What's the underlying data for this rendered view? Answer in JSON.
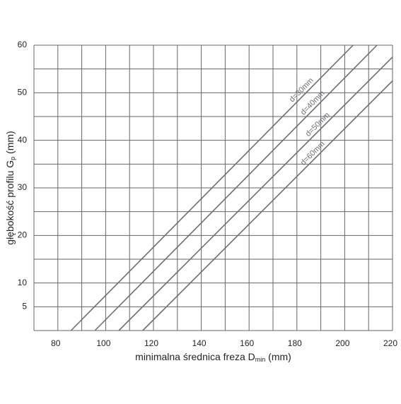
{
  "chart_data": {
    "type": "line",
    "x_label": {
      "text": "minimalna średnica freza D",
      "sub": "min",
      "unit": " (mm)"
    },
    "y_label": {
      "text": "głębokość profilu G",
      "sub": "p",
      "unit": " (mm)"
    },
    "xlim": [
      70,
      220
    ],
    "ylim": [
      0,
      60
    ],
    "xticks": [
      80,
      100,
      120,
      140,
      160,
      180,
      200,
      220
    ],
    "yticks": [
      5,
      10,
      20,
      30,
      40,
      50,
      60
    ],
    "xgrid": [
      70,
      80,
      90,
      100,
      110,
      120,
      130,
      140,
      150,
      160,
      170,
      180,
      190,
      200,
      210,
      220
    ],
    "ygrid": [
      0,
      5,
      10,
      15,
      20,
      25,
      30,
      35,
      40,
      45,
      50,
      55,
      60
    ],
    "grid": true,
    "series": [
      {
        "name": "d=30mm",
        "color": "#6d6e71",
        "x": [
          85.5,
          203.5
        ],
        "values": [
          0,
          60
        ]
      },
      {
        "name": "d=40mm",
        "color": "#6d6e71",
        "x": [
          95.5,
          213.5
        ],
        "values": [
          0,
          60
        ]
      },
      {
        "name": "d=50mm",
        "color": "#6d6e71",
        "x": [
          105.5,
          220
        ],
        "values": [
          0,
          57.5
        ]
      },
      {
        "name": "d=60mm",
        "color": "#6d6e71",
        "x": [
          115.5,
          220
        ],
        "values": [
          0,
          52.5
        ]
      }
    ]
  }
}
